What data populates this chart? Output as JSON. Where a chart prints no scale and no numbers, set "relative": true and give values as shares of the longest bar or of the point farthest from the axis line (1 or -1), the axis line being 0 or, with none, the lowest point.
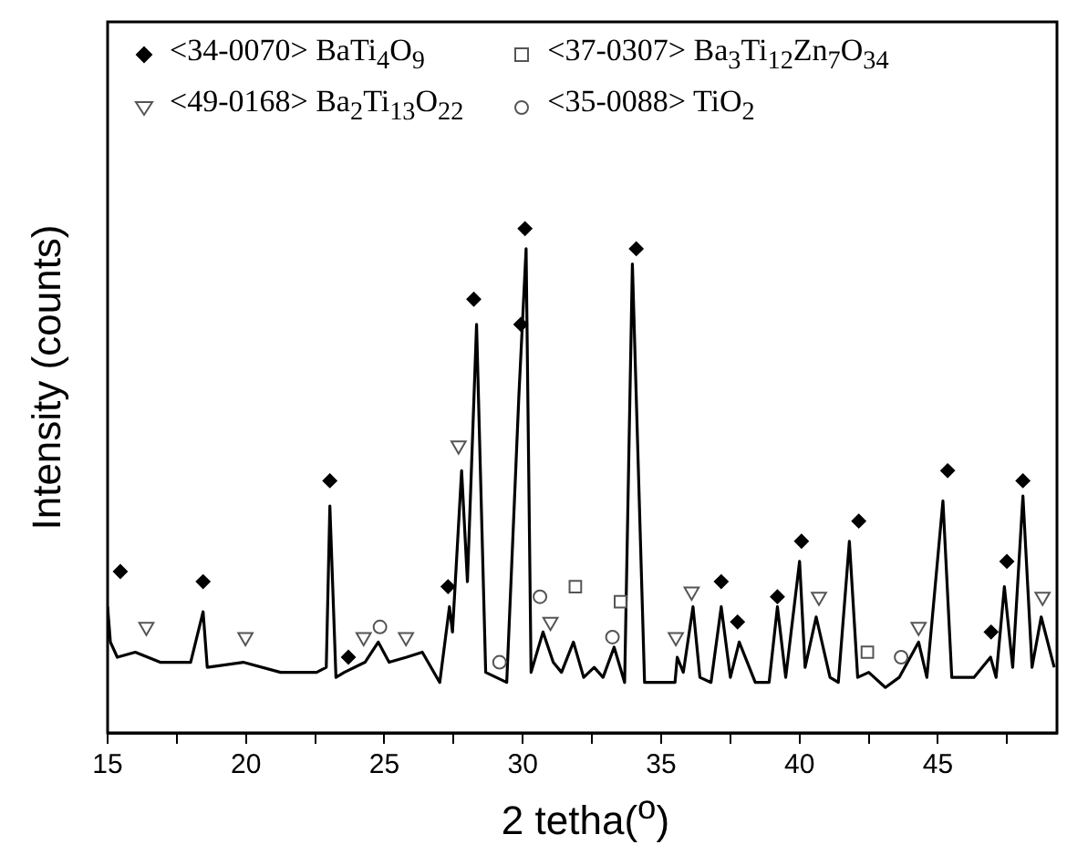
{
  "chart_data": {
    "type": "line",
    "relative": true,
    "xlabel": "2 tetha($^{o}$)",
    "ylabel": "Intensity (counts)",
    "xlim": [
      15,
      49.3
    ],
    "xticks": [
      15,
      {
        "value": 17.5,
        "label": null
      },
      20,
      {
        "value": 22.5,
        "label": null
      },
      25,
      {
        "value": 27.5,
        "label": null
      },
      30,
      {
        "value": 32.5,
        "label": null
      },
      35,
      {
        "value": 37.5,
        "label": null
      },
      40,
      {
        "value": 42.5,
        "label": null
      },
      45,
      {
        "value": 47.5,
        "label": null
      }
    ],
    "grid": false,
    "legend": "top left",
    "tick_labels": "x",
    "series": [
      {
        "type": "line",
        "color": "#000000",
        "marker": "none",
        "x": [
          15.0,
          15.1,
          15.35,
          16.0,
          16.9,
          18.0,
          18.45,
          18.6,
          19.9,
          21.25,
          22.55,
          22.9,
          23.03,
          23.25,
          23.55,
          24.3,
          24.78,
          25.17,
          25.8,
          26.37,
          27.0,
          27.35,
          27.46,
          27.79,
          28.0,
          28.33,
          28.66,
          29.42,
          29.86,
          30.12,
          30.3,
          30.73,
          31.1,
          31.4,
          31.83,
          32.2,
          32.58,
          32.9,
          33.3,
          33.68,
          33.96,
          34.4,
          35.5,
          35.58,
          35.8,
          36.15,
          36.4,
          36.8,
          37.17,
          37.5,
          37.82,
          38.4,
          38.9,
          39.2,
          39.5,
          40.0,
          40.2,
          40.6,
          41.1,
          41.4,
          41.8,
          42.1,
          42.5,
          43.1,
          43.6,
          44.3,
          44.6,
          45.18,
          45.5,
          46.3,
          46.9,
          47.1,
          47.4,
          47.7,
          48.07,
          48.4,
          48.73,
          49.2
        ],
        "values": [
          0.25,
          0.18,
          0.15,
          0.16,
          0.14,
          0.14,
          0.24,
          0.13,
          0.14,
          0.12,
          0.12,
          0.13,
          0.45,
          0.11,
          0.12,
          0.14,
          0.18,
          0.14,
          0.15,
          0.16,
          0.1,
          0.25,
          0.2,
          0.52,
          0.3,
          0.81,
          0.12,
          0.1,
          0.67,
          0.96,
          0.12,
          0.2,
          0.14,
          0.12,
          0.18,
          0.11,
          0.13,
          0.11,
          0.17,
          0.1,
          0.93,
          0.1,
          0.1,
          0.15,
          0.12,
          0.25,
          0.11,
          0.1,
          0.25,
          0.11,
          0.18,
          0.1,
          0.1,
          0.25,
          0.11,
          0.34,
          0.13,
          0.23,
          0.11,
          0.1,
          0.38,
          0.11,
          0.12,
          0.09,
          0.11,
          0.18,
          0.11,
          0.46,
          0.11,
          0.11,
          0.15,
          0.11,
          0.29,
          0.13,
          0.47,
          0.13,
          0.23,
          0.13
        ]
      },
      {
        "type": "scatter",
        "name": "<34-0070>  BaTi$_{4}$O$_{9}$",
        "color": "#000000",
        "marker": "diamond",
        "x": [
          15.46,
          18.45,
          23.03,
          23.7,
          27.3,
          28.23,
          29.93,
          30.08,
          34.1,
          37.17,
          37.76,
          39.2,
          40.07,
          42.14,
          45.35,
          46.92,
          47.49,
          48.07
        ],
        "values": [
          0.32,
          0.3,
          0.5,
          0.15,
          0.29,
          0.86,
          0.81,
          1,
          0.96,
          0.3,
          0.22,
          0.27,
          0.38,
          0.42,
          0.52,
          0.2,
          0.34,
          0.5
        ]
      },
      {
        "type": "scatter",
        "name": "<37-0307> Ba$_{3}$Ti$_{12}$Zn$_{7}$O$_{34}$",
        "color": "#555555",
        "marker": "square",
        "x": [
          31.9,
          33.53,
          42.45
        ],
        "values": [
          0.29,
          0.26,
          0.16
        ]
      },
      {
        "type": "scatter",
        "name": "<49-0168> Ba$_{2}$Ti$_{13}$O$_{22}$",
        "color": "#555555",
        "marker": "triangle",
        "x": [
          16.4,
          19.98,
          24.25,
          25.78,
          27.68,
          31.0,
          35.53,
          36.1,
          40.7,
          44.3,
          48.78
        ],
        "values": [
          0.21,
          0.19,
          0.19,
          0.19,
          0.57,
          0.22,
          0.19,
          0.28,
          0.27,
          0.21,
          0.27
        ]
      },
      {
        "type": "scatter",
        "name": "<35-0088> TiO$_{2}$",
        "color": "#555555",
        "marker": "circle",
        "x": [
          24.84,
          29.16,
          30.62,
          33.24,
          43.67
        ],
        "values": [
          0.21,
          0.14,
          0.27,
          0.19,
          0.15
        ]
      }
    ]
  }
}
